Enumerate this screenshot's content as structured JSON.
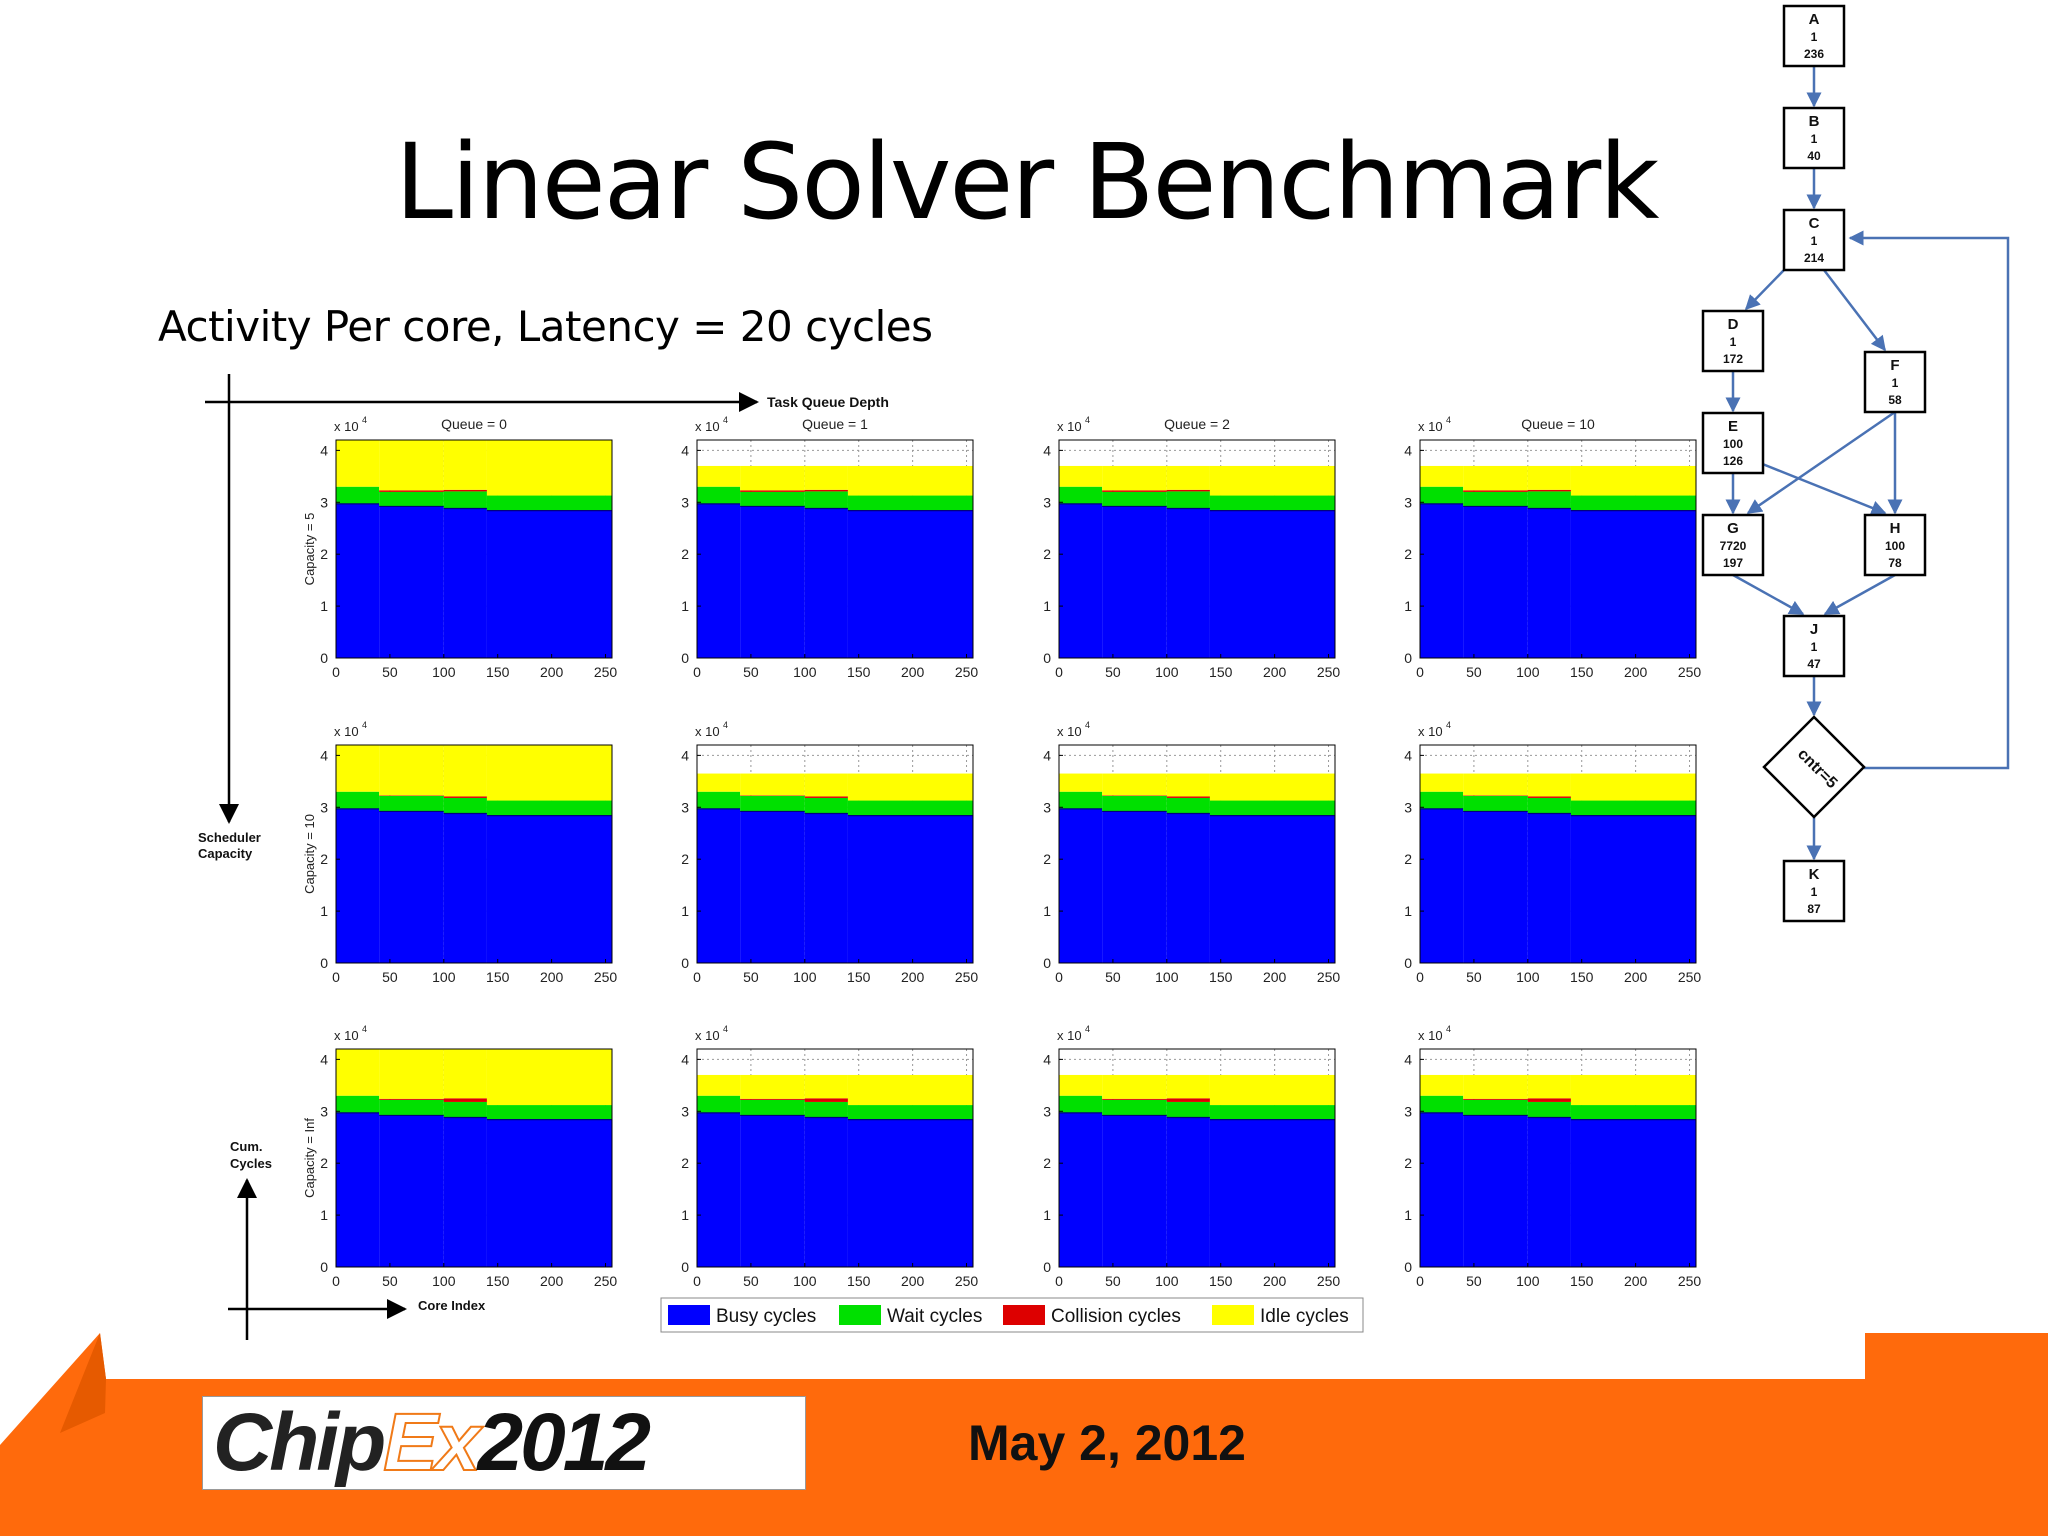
{
  "slide": {
    "title": "Linear Solver Benchmark",
    "subtitle": "Activity Per core, Latency = 20 cycles"
  },
  "axes_annotations": {
    "x_arrow_label": "Task Queue Depth",
    "y_arrow_label_line1": "Scheduler",
    "y_arrow_label_line2": "Capacity",
    "cum_label_line1": "Cum.",
    "cum_label_line2": "Cycles",
    "core_index_label": "Core Index"
  },
  "footer": {
    "logo_parts": [
      "Chip",
      "Ex",
      "2012"
    ],
    "date": "May 2, 2012"
  },
  "colors": {
    "busy": "#0000ff",
    "wait": "#00e000",
    "collision": "#dd0000",
    "idle": "#ffff00",
    "footer_orange": "#ff6a0c",
    "flow_line": "#4a72b4"
  },
  "chart_data": {
    "type": "area",
    "layout": "grid 3x4 (rows: scheduler capacity, columns: task queue depth)",
    "x_tick_labels": [
      "0",
      "50",
      "100",
      "150",
      "200",
      "250"
    ],
    "y_tick_labels": [
      "0",
      "1",
      "2",
      "3",
      "4"
    ],
    "y_multiplier_label": "x 10",
    "y_multiplier_exp": "4",
    "xlim": [
      0,
      256
    ],
    "ylim": [
      0,
      4.2
    ],
    "column_titles": [
      "Queue = 0",
      "Queue = 1",
      "Queue = 2",
      "Queue = 10"
    ],
    "row_labels": [
      "Capacity = 5",
      "Capacity = 10",
      "Capacity = Inf"
    ],
    "x_segments": [
      0,
      40,
      100,
      140,
      256
    ],
    "legend": [
      "Busy cycles",
      "Wait cycles",
      "Collision cycles",
      "Idle cycles"
    ],
    "panels": [
      {
        "row": 0,
        "col": 0,
        "busy": [
          2.97,
          2.92,
          2.88,
          2.84
        ],
        "wait": [
          0.33,
          0.28,
          0.33,
          0.29
        ],
        "collision": [
          0,
          0.03,
          0.03,
          0
        ],
        "total": 4.2
      },
      {
        "row": 0,
        "col": 1,
        "busy": [
          2.97,
          2.92,
          2.88,
          2.84
        ],
        "wait": [
          0.33,
          0.28,
          0.33,
          0.29
        ],
        "collision": [
          0,
          0.03,
          0.03,
          0
        ],
        "total": 3.7
      },
      {
        "row": 0,
        "col": 2,
        "busy": [
          2.97,
          2.92,
          2.88,
          2.84
        ],
        "wait": [
          0.33,
          0.28,
          0.33,
          0.29
        ],
        "collision": [
          0,
          0.03,
          0.03,
          0
        ],
        "total": 3.7
      },
      {
        "row": 0,
        "col": 3,
        "busy": [
          2.97,
          2.92,
          2.88,
          2.84
        ],
        "wait": [
          0.33,
          0.28,
          0.33,
          0.29
        ],
        "collision": [
          0,
          0.03,
          0.03,
          0
        ],
        "total": 3.7
      },
      {
        "row": 1,
        "col": 0,
        "busy": [
          2.97,
          2.92,
          2.88,
          2.84
        ],
        "wait": [
          0.33,
          0.3,
          0.3,
          0.29
        ],
        "collision": [
          0,
          0.01,
          0.03,
          0
        ],
        "total": 4.2
      },
      {
        "row": 1,
        "col": 1,
        "busy": [
          2.97,
          2.92,
          2.88,
          2.84
        ],
        "wait": [
          0.33,
          0.3,
          0.3,
          0.29
        ],
        "collision": [
          0,
          0.01,
          0.03,
          0
        ],
        "total": 3.65
      },
      {
        "row": 1,
        "col": 2,
        "busy": [
          2.97,
          2.92,
          2.88,
          2.84
        ],
        "wait": [
          0.33,
          0.3,
          0.3,
          0.29
        ],
        "collision": [
          0,
          0.01,
          0.03,
          0
        ],
        "total": 3.65
      },
      {
        "row": 1,
        "col": 3,
        "busy": [
          2.97,
          2.92,
          2.88,
          2.84
        ],
        "wait": [
          0.33,
          0.3,
          0.3,
          0.29
        ],
        "collision": [
          0,
          0.01,
          0.03,
          0
        ],
        "total": 3.65
      },
      {
        "row": 2,
        "col": 0,
        "busy": [
          2.97,
          2.92,
          2.88,
          2.84
        ],
        "wait": [
          0.33,
          0.3,
          0.3,
          0.28
        ],
        "collision": [
          0,
          0.02,
          0.07,
          0
        ],
        "total": 4.2
      },
      {
        "row": 2,
        "col": 1,
        "busy": [
          2.97,
          2.92,
          2.88,
          2.84
        ],
        "wait": [
          0.33,
          0.3,
          0.3,
          0.28
        ],
        "collision": [
          0,
          0.02,
          0.07,
          0
        ],
        "total": 3.7
      },
      {
        "row": 2,
        "col": 2,
        "busy": [
          2.97,
          2.92,
          2.88,
          2.84
        ],
        "wait": [
          0.33,
          0.3,
          0.3,
          0.28
        ],
        "collision": [
          0,
          0.02,
          0.07,
          0
        ],
        "total": 3.7
      },
      {
        "row": 2,
        "col": 3,
        "busy": [
          2.97,
          2.92,
          2.88,
          2.84
        ],
        "wait": [
          0.33,
          0.3,
          0.3,
          0.28
        ],
        "collision": [
          0,
          0.02,
          0.07,
          0
        ],
        "total": 3.7
      }
    ]
  },
  "flow_diagram": {
    "nodes": [
      {
        "id": "A",
        "line2": "1",
        "line3": "236"
      },
      {
        "id": "B",
        "line2": "1",
        "line3": "40"
      },
      {
        "id": "C",
        "line2": "1",
        "line3": "214"
      },
      {
        "id": "D",
        "line2": "1",
        "line3": "172"
      },
      {
        "id": "F",
        "line2": "1",
        "line3": "58"
      },
      {
        "id": "E",
        "line2": "100",
        "line3": "126"
      },
      {
        "id": "G",
        "line2": "7720",
        "line3": "197"
      },
      {
        "id": "H",
        "line2": "100",
        "line3": "78"
      },
      {
        "id": "J",
        "line2": "1",
        "line3": "47"
      },
      {
        "id": "K",
        "line2": "1",
        "line3": "87"
      }
    ],
    "decision": "cntr=5"
  }
}
